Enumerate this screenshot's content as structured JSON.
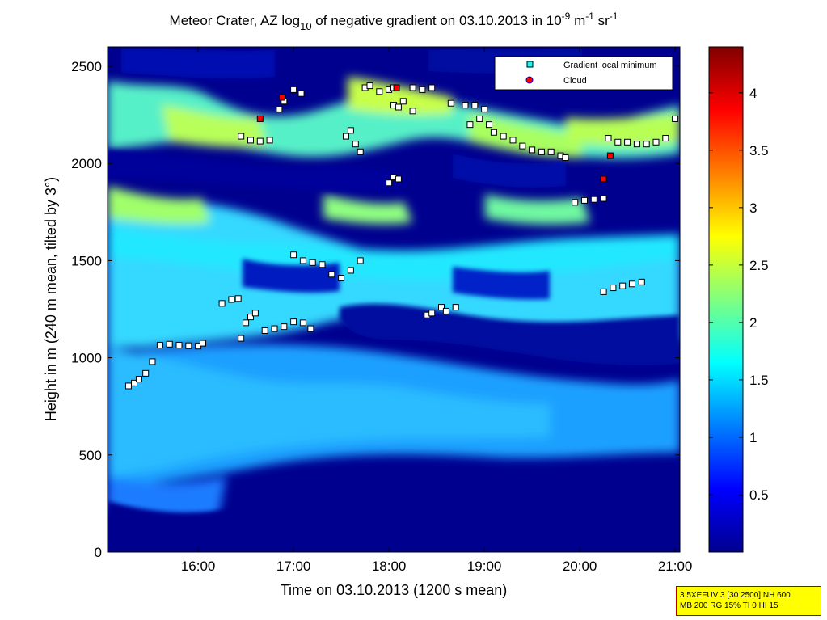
{
  "chart_data": {
    "type": "heatmap",
    "title": {
      "prefix": "Meteor Crater, AZ log",
      "log_base": "10",
      "mid": " of negative gradient on 03.10.2013 in 10",
      "exp1": "-9",
      "unit_m": " m",
      "exp2": "-1",
      "unit_sr": " sr",
      "exp3": "-1"
    },
    "xlabel": "Time on 03.10.2013 (1200 s mean)",
    "ylabel": "Height in m (240 m mean, tilted by 3°)",
    "x_range_hours": [
      15.05,
      21.05
    ],
    "y_range_m": [
      0,
      2600
    ],
    "x_ticks": [
      {
        "value": 16,
        "label": "16:00"
      },
      {
        "value": 17,
        "label": "17:00"
      },
      {
        "value": 18,
        "label": "18:00"
      },
      {
        "value": 19,
        "label": "19:00"
      },
      {
        "value": 20,
        "label": "20:00"
      },
      {
        "value": 21,
        "label": "21:00"
      }
    ],
    "y_ticks": [
      {
        "value": 0,
        "label": "0"
      },
      {
        "value": 500,
        "label": "500"
      },
      {
        "value": 1000,
        "label": "1000"
      },
      {
        "value": 1500,
        "label": "1500"
      },
      {
        "value": 2000,
        "label": "2000"
      },
      {
        "value": 2500,
        "label": "2500"
      }
    ],
    "colorbar": {
      "range": [
        0,
        4.4
      ],
      "ticks": [
        {
          "value": 0.5,
          "label": "0.5"
        },
        {
          "value": 1,
          "label": "1"
        },
        {
          "value": 1.5,
          "label": "1.5"
        },
        {
          "value": 2,
          "label": "2"
        },
        {
          "value": 2.5,
          "label": "2.5"
        },
        {
          "value": 3,
          "label": "3"
        },
        {
          "value": 3.5,
          "label": "3.5"
        },
        {
          "value": 4,
          "label": "4"
        }
      ],
      "colormap": "jet"
    },
    "legend": {
      "position": "top-right",
      "entries": [
        {
          "label": "Gradient local minimum",
          "marker": "square",
          "color": "#00ffff"
        },
        {
          "label": "Cloud",
          "marker": "circle",
          "color": "#ff0000"
        }
      ]
    },
    "gradient_minimum_tracks": [
      {
        "x": [
          15.27,
          15.33,
          15.38,
          15.45,
          15.52
        ],
        "y": [
          855,
          870,
          890,
          920,
          980
        ]
      },
      {
        "x": [
          15.6,
          15.7,
          15.8,
          15.9,
          16.0,
          16.05
        ],
        "y": [
          1065,
          1070,
          1065,
          1062,
          1060,
          1075
        ]
      },
      {
        "x": [
          16.25,
          16.35,
          16.42
        ],
        "y": [
          1280,
          1300,
          1305
        ]
      },
      {
        "x": [
          16.45,
          16.5,
          16.55,
          16.6,
          16.7,
          16.8,
          16.9,
          17.0,
          17.1,
          17.18
        ],
        "y": [
          1100,
          1180,
          1210,
          1230,
          1140,
          1150,
          1160,
          1185,
          1180,
          1150
        ]
      },
      {
        "x": [
          16.45,
          16.55,
          16.65,
          16.75
        ],
        "y": [
          2140,
          2120,
          2115,
          2120
        ]
      },
      {
        "x": [
          16.85,
          16.9,
          17.0,
          17.08
        ],
        "y": [
          2280,
          2320,
          2380,
          2360
        ]
      },
      {
        "x": [
          17.0,
          17.1,
          17.2,
          17.3,
          17.4,
          17.5,
          17.6,
          17.7
        ],
        "y": [
          1530,
          1500,
          1490,
          1480,
          1430,
          1410,
          1450,
          1500
        ]
      },
      {
        "x": [
          17.55,
          17.6,
          17.65,
          17.7
        ],
        "y": [
          2140,
          2170,
          2100,
          2060
        ]
      },
      {
        "x": [
          17.75,
          17.8,
          17.9,
          18.0,
          18.05
        ],
        "y": [
          2390,
          2400,
          2370,
          2380,
          2390
        ]
      },
      {
        "x": [
          18.05,
          18.1,
          18.15,
          18.25
        ],
        "y": [
          2300,
          2290,
          2320,
          2270
        ]
      },
      {
        "x": [
          18.25,
          18.35,
          18.45
        ],
        "y": [
          2390,
          2380,
          2390
        ]
      },
      {
        "x": [
          18.4,
          18.45,
          18.55,
          18.6,
          18.7
        ],
        "y": [
          1220,
          1230,
          1260,
          1240,
          1260
        ]
      },
      {
        "x": [
          18.0,
          18.05,
          18.1
        ],
        "y": [
          1900,
          1930,
          1920
        ]
      },
      {
        "x": [
          18.65,
          18.8,
          18.9,
          19.0
        ],
        "y": [
          2310,
          2300,
          2300,
          2280
        ]
      },
      {
        "x": [
          18.85,
          18.95,
          19.05
        ],
        "y": [
          2200,
          2230,
          2200
        ]
      },
      {
        "x": [
          19.1,
          19.2,
          19.3,
          19.4,
          19.5,
          19.6,
          19.7,
          19.8,
          19.85
        ],
        "y": [
          2160,
          2140,
          2120,
          2090,
          2070,
          2060,
          2060,
          2040,
          2030
        ]
      },
      {
        "x": [
          19.95,
          20.05,
          20.15,
          20.25
        ],
        "y": [
          1800,
          1810,
          1815,
          1820
        ]
      },
      {
        "x": [
          20.25,
          20.35,
          20.45,
          20.55,
          20.65
        ],
        "y": [
          1340,
          1360,
          1370,
          1380,
          1390
        ]
      },
      {
        "x": [
          20.3,
          20.4,
          20.5,
          20.6,
          20.7,
          20.8,
          20.9,
          21.0
        ],
        "y": [
          2130,
          2110,
          2110,
          2100,
          2100,
          2110,
          2130,
          2230
        ]
      }
    ],
    "cloud_points": {
      "x": [
        16.65,
        16.88,
        18.08,
        20.25,
        20.32
      ],
      "y": [
        2230,
        2340,
        2390,
        1920,
        2040
      ]
    }
  },
  "info_box": {
    "line1": "3.5XEFUV 3 [30 2500] NH 600",
    "line2": "MB 200 RG 15% TI 0 HI 15"
  }
}
